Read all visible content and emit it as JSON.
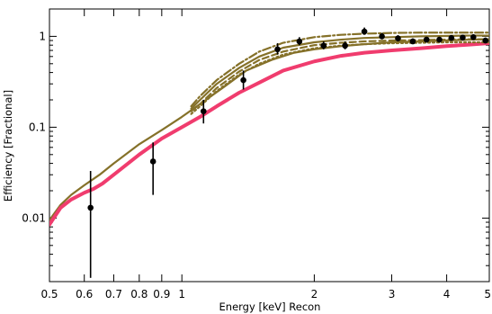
{
  "chart_data": {
    "type": "line",
    "xlabel": "Energy [keV] Recon",
    "ylabel": "Efficiency [Fractional]",
    "x_scale": "log",
    "y_scale": "log",
    "xlim": [
      0.5,
      5
    ],
    "ylim": [
      0.002,
      2
    ],
    "x_ticks": [
      {
        "value": 0.5,
        "label": "0.5"
      },
      {
        "value": 0.6,
        "label": "0.6"
      },
      {
        "value": 0.7,
        "label": "0.7"
      },
      {
        "value": 0.8,
        "label": "0.8"
      },
      {
        "value": 0.9,
        "label": "0.9"
      },
      {
        "value": 1,
        "label": "1"
      },
      {
        "value": 2,
        "label": "2"
      },
      {
        "value": 3,
        "label": "3"
      },
      {
        "value": 4,
        "label": "4"
      },
      {
        "value": 5,
        "label": "5"
      }
    ],
    "y_ticks": [
      {
        "value": 0.01,
        "label": "0.01"
      },
      {
        "value": 0.1,
        "label": "0.1"
      },
      {
        "value": 1,
        "label": "1"
      }
    ],
    "colors": {
      "pink": "#f03c6e",
      "olive": "#857129",
      "points": "#000000"
    },
    "series": [
      {
        "style": "solid",
        "color": "olive",
        "x": [
          0.5,
          0.53,
          0.56,
          0.6,
          0.65,
          0.7,
          0.8,
          0.9,
          1.0,
          1.1,
          1.25,
          1.4,
          1.6,
          1.8,
          2.0,
          2.3,
          2.6,
          3.0,
          3.5,
          4.0,
          4.5,
          5.0
        ],
        "y": [
          0.0095,
          0.014,
          0.018,
          0.023,
          0.03,
          0.04,
          0.065,
          0.093,
          0.13,
          0.18,
          0.28,
          0.42,
          0.55,
          0.66,
          0.72,
          0.78,
          0.82,
          0.86,
          0.88,
          0.9,
          0.92,
          0.93
        ]
      },
      {
        "style": "solid",
        "color": "pink",
        "x": [
          0.5,
          0.53,
          0.56,
          0.6,
          0.63,
          0.66,
          0.7,
          0.8,
          0.9,
          1.0,
          1.1,
          1.2,
          1.35,
          1.5,
          1.7,
          2.0,
          2.3,
          2.6,
          3.0,
          3.5,
          4.0,
          4.5,
          5.0
        ],
        "y": [
          0.0085,
          0.013,
          0.016,
          0.019,
          0.021,
          0.024,
          0.03,
          0.05,
          0.075,
          0.1,
          0.13,
          0.17,
          0.24,
          0.31,
          0.42,
          0.53,
          0.61,
          0.66,
          0.7,
          0.74,
          0.78,
          0.81,
          0.84
        ]
      },
      {
        "style": "solid",
        "color": "olive",
        "x": [
          1.05,
          1.1,
          1.2,
          1.35,
          1.5,
          1.7,
          2.0,
          2.3,
          2.6,
          3.0,
          3.5,
          4.0,
          4.5,
          5.0
        ],
        "y": [
          0.16,
          0.2,
          0.3,
          0.45,
          0.6,
          0.75,
          0.86,
          0.92,
          0.96,
          0.98,
          1.0,
          1.01,
          1.02,
          1.02
        ]
      },
      {
        "style": "dashed",
        "color": "olive",
        "x": [
          1.05,
          1.1,
          1.2,
          1.35,
          1.5,
          1.7,
          2.0,
          2.3,
          2.6,
          3.0,
          3.5,
          4.0,
          4.5,
          5.0
        ],
        "y": [
          0.15,
          0.18,
          0.27,
          0.41,
          0.55,
          0.68,
          0.8,
          0.85,
          0.88,
          0.9,
          0.91,
          0.92,
          0.93,
          0.93
        ]
      },
      {
        "style": "dashdot",
        "color": "olive",
        "x": [
          1.05,
          1.1,
          1.2,
          1.35,
          1.5,
          1.7,
          2.0,
          2.3,
          2.6,
          3.0,
          3.5,
          4.0,
          4.5,
          5.0
        ],
        "y": [
          0.17,
          0.22,
          0.33,
          0.5,
          0.68,
          0.85,
          0.98,
          1.04,
          1.07,
          1.09,
          1.1,
          1.1,
          1.1,
          1.1
        ]
      },
      {
        "style": "dotted",
        "color": "olive",
        "x": [
          1.05,
          1.1,
          1.2,
          1.35,
          1.5,
          1.7,
          2.0,
          2.3,
          2.6,
          3.0,
          3.5,
          4.0,
          4.5,
          5.0
        ],
        "y": [
          0.14,
          0.17,
          0.25,
          0.38,
          0.5,
          0.63,
          0.74,
          0.79,
          0.82,
          0.84,
          0.85,
          0.86,
          0.86,
          0.86
        ]
      }
    ],
    "points": {
      "x": [
        0.62,
        0.86,
        1.12,
        1.38,
        1.65,
        1.85,
        2.1,
        2.35,
        2.6,
        2.85,
        3.1,
        3.35,
        3.6,
        3.85,
        4.1,
        4.35,
        4.6,
        4.9
      ],
      "y": [
        0.013,
        0.042,
        0.15,
        0.33,
        0.72,
        0.88,
        0.79,
        0.79,
        1.13,
        1.0,
        0.95,
        0.88,
        0.92,
        0.92,
        0.96,
        0.97,
        0.98,
        0.9
      ],
      "err_low": [
        0.0022,
        0.018,
        0.11,
        0.26,
        0.63,
        0.8,
        0.72,
        0.72,
        1.04,
        0.93,
        0.88,
        0.82,
        0.86,
        0.86,
        0.9,
        0.91,
        0.92,
        0.84
      ],
      "err_high": [
        0.033,
        0.068,
        0.2,
        0.42,
        0.84,
        0.98,
        0.88,
        0.88,
        1.25,
        1.09,
        1.03,
        0.95,
        0.99,
        0.99,
        1.03,
        1.04,
        1.05,
        0.97
      ]
    }
  }
}
